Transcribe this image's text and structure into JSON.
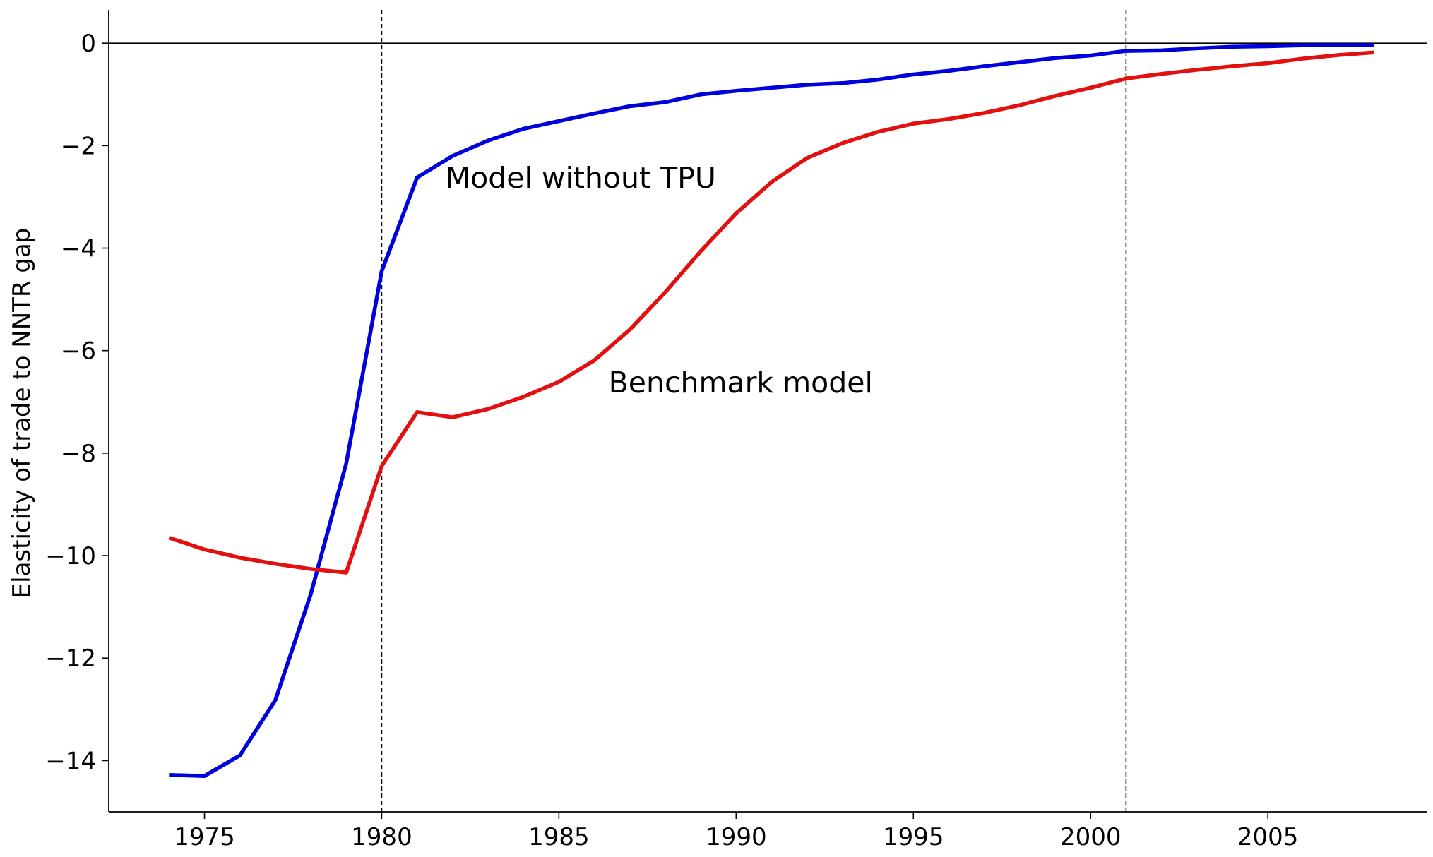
{
  "chart_data": {
    "type": "line",
    "title": "",
    "xlabel": "",
    "ylabel": "Elasticity of trade to NNTR gap",
    "xlim": [
      1972.3,
      2009.5
    ],
    "ylim": [
      -15,
      0.65
    ],
    "x_ticks": [
      1975,
      1980,
      1985,
      1990,
      1995,
      2000,
      2005
    ],
    "y_ticks": [
      0,
      -2,
      -4,
      -6,
      -8,
      -10,
      -12,
      -14
    ],
    "tick_labels": {
      "x": [
        "1975",
        "1980",
        "1985",
        "1990",
        "1995",
        "2000",
        "2005"
      ],
      "y": [
        "0",
        "−2",
        "−4",
        "−6",
        "−8",
        "−10",
        "−12",
        "−14"
      ]
    },
    "grid": false,
    "reference_lines": {
      "horizontal_y": 0,
      "vertical_dashed_x": [
        1980,
        2001
      ]
    },
    "x": [
      1974,
      1975,
      1976,
      1977,
      1978,
      1979,
      1980,
      1981,
      1982,
      1983,
      1984,
      1985,
      1986,
      1987,
      1988,
      1989,
      1990,
      1991,
      1992,
      1993,
      1994,
      1995,
      1996,
      1997,
      1998,
      1999,
      2000,
      2001,
      2002,
      2003,
      2004,
      2005,
      2006,
      2007,
      2008
    ],
    "series": [
      {
        "color": "#0000dd",
        "values": [
          -14.28,
          -14.3,
          -13.9,
          -12.82,
          -10.75,
          -8.2,
          -4.45,
          -2.62,
          -2.2,
          -1.9,
          -1.67,
          -1.52,
          -1.37,
          -1.23,
          -1.15,
          -1.0,
          -0.93,
          -0.87,
          -0.81,
          -0.78,
          -0.71,
          -0.61,
          -0.54,
          -0.45,
          -0.37,
          -0.29,
          -0.24,
          -0.15,
          -0.14,
          -0.1,
          -0.07,
          -0.06,
          -0.04,
          -0.04,
          -0.04
        ]
      },
      {
        "color": "#e31010",
        "values": [
          -9.65,
          -9.88,
          -10.04,
          -10.16,
          -10.26,
          -10.33,
          -8.25,
          -7.2,
          -7.3,
          -7.14,
          -6.9,
          -6.61,
          -6.19,
          -5.59,
          -4.86,
          -4.06,
          -3.32,
          -2.71,
          -2.24,
          -1.95,
          -1.73,
          -1.57,
          -1.48,
          -1.36,
          -1.21,
          -1.03,
          -0.87,
          -0.69,
          -0.6,
          -0.52,
          -0.45,
          -0.39,
          -0.3,
          -0.23,
          -0.18
        ]
      }
    ],
    "annotations": [
      {
        "text": "Model without TPU",
        "x": 1981.8,
        "y": -2.82
      },
      {
        "text": "Benchmark model",
        "x": 1986.4,
        "y": -6.82
      }
    ]
  }
}
